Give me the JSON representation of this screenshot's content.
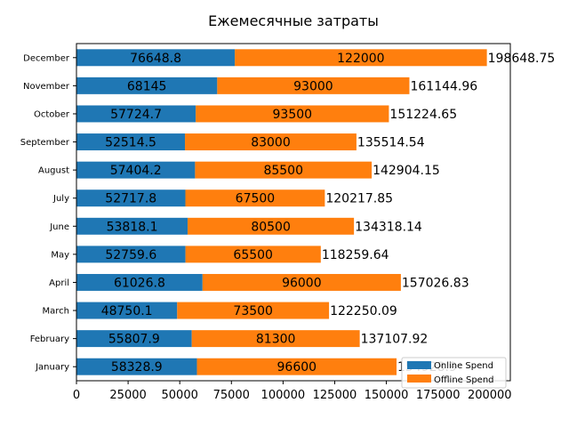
{
  "chart_data": {
    "type": "bar",
    "orientation": "horizontal",
    "stacked": true,
    "title": "Ежемесячные затраты",
    "xlabel": "",
    "ylabel": "",
    "xlim": [
      0,
      210000
    ],
    "xticks": [
      0,
      25000,
      50000,
      75000,
      100000,
      125000,
      150000,
      175000,
      200000
    ],
    "grid": false,
    "legend": {
      "placement": "lower-right"
    },
    "categories": [
      "January",
      "February",
      "March",
      "April",
      "May",
      "June",
      "July",
      "August",
      "September",
      "October",
      "November",
      "December"
    ],
    "series": [
      {
        "name": "Online Spend",
        "color": "#1f77b4",
        "values": [
          58328.9,
          55807.9,
          48750.1,
          61026.8,
          52759.6,
          53818.1,
          52717.8,
          57404.2,
          52514.5,
          57724.7,
          68145,
          76648.8
        ],
        "labels": [
          "58328.9",
          "55807.9",
          "48750.1",
          "61026.8",
          "52759.6",
          "53818.1",
          "52717.8",
          "57404.2",
          "52514.5",
          "57724.7",
          "68145",
          "76648.8"
        ]
      },
      {
        "name": "Offline Spend",
        "color": "#ff7f0e",
        "values": [
          96600,
          81300,
          73500,
          96000,
          65500,
          80500,
          67500,
          85500,
          83000,
          93500,
          93000,
          122000
        ],
        "labels": [
          "96600",
          "81300",
          "73500",
          "96000",
          "65500",
          "80500",
          "67500",
          "85500",
          "83000",
          "93500",
          "93000",
          "122000"
        ]
      }
    ],
    "totals": [
      "154928.9",
      "137107.92",
      "122250.09",
      "157026.83",
      "118259.64",
      "134318.14",
      "120217.85",
      "142904.15",
      "135514.54",
      "151224.65",
      "161144.96",
      "198648.75"
    ]
  }
}
